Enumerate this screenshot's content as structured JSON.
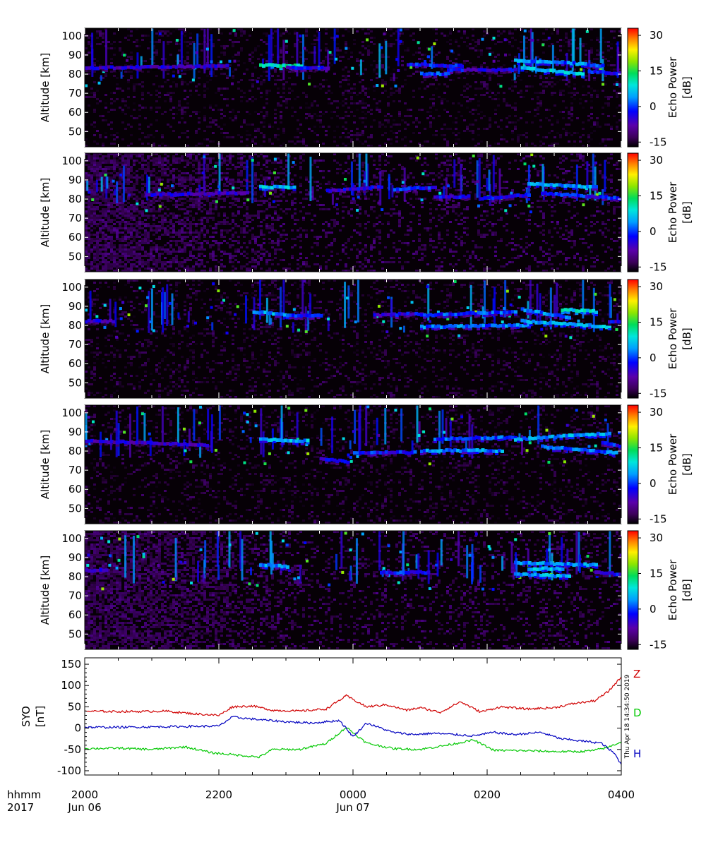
{
  "chart_data": [
    {
      "type": "heatmap",
      "panel": 1,
      "ylabel": "Altitude [km]",
      "yticks": [
        50,
        60,
        70,
        80,
        90,
        100
      ],
      "ylim": [
        42,
        104
      ],
      "xlim": [
        0,
        8
      ],
      "colorbar": {
        "label": "Echo Power\n[dB]",
        "ticks": [
          -15,
          0,
          15,
          30
        ],
        "range": [
          -17,
          33
        ]
      },
      "background_level_db": -14,
      "echo_layers": [
        {
          "t0": 0.0,
          "t1": 2.1,
          "alt0": 83,
          "alt1": 84,
          "db": -6
        },
        {
          "t0": 2.6,
          "t1": 3.2,
          "alt0": 84.5,
          "alt1": 84,
          "db": 10
        },
        {
          "t0": 3.0,
          "t1": 3.6,
          "alt0": 83,
          "alt1": 83,
          "db": -4
        },
        {
          "t0": 4.8,
          "t1": 5.6,
          "alt0": 85,
          "alt1": 84,
          "db": -2
        },
        {
          "t0": 5.0,
          "t1": 5.4,
          "alt0": 80,
          "alt1": 80,
          "db": 0
        },
        {
          "t0": 5.4,
          "t1": 6.4,
          "alt0": 82,
          "alt1": 82,
          "db": -4
        },
        {
          "t0": 6.4,
          "t1": 7.1,
          "alt0": 87,
          "alt1": 86,
          "db": 3
        },
        {
          "t0": 6.5,
          "t1": 7.4,
          "alt0": 83,
          "alt1": 80,
          "db": 6
        },
        {
          "t0": 7.1,
          "t1": 7.7,
          "alt0": 86,
          "alt1": 84,
          "db": 2
        },
        {
          "t0": 7.5,
          "t1": 8.0,
          "alt0": 81,
          "alt1": 80,
          "db": -2
        }
      ]
    },
    {
      "type": "heatmap",
      "panel": 2,
      "ylabel": "Altitude [km]",
      "yticks": [
        50,
        60,
        70,
        80,
        90,
        100
      ],
      "ylim": [
        42,
        104
      ],
      "xlim": [
        0,
        8
      ],
      "colorbar": {
        "label": "Echo Power\n[dB]",
        "ticks": [
          -15,
          0,
          15,
          30
        ],
        "range": [
          -17,
          33
        ]
      },
      "background_level_db": -12,
      "echo_layers": [
        {
          "t0": 0.9,
          "t1": 2.4,
          "alt0": 82,
          "alt1": 83,
          "db": -6
        },
        {
          "t0": 2.6,
          "t1": 3.1,
          "alt0": 86,
          "alt1": 86,
          "db": 6
        },
        {
          "t0": 3.6,
          "t1": 4.4,
          "alt0": 84,
          "alt1": 86,
          "db": -4
        },
        {
          "t0": 4.6,
          "t1": 5.2,
          "alt0": 85,
          "alt1": 86,
          "db": -2
        },
        {
          "t0": 5.2,
          "t1": 5.7,
          "alt0": 81,
          "alt1": 81,
          "db": -4
        },
        {
          "t0": 5.9,
          "t1": 6.6,
          "alt0": 80,
          "alt1": 82,
          "db": -3
        },
        {
          "t0": 6.6,
          "t1": 7.6,
          "alt0": 88,
          "alt1": 86,
          "db": 4
        },
        {
          "t0": 6.8,
          "t1": 8.0,
          "alt0": 83,
          "alt1": 80,
          "db": -2
        }
      ]
    },
    {
      "type": "heatmap",
      "panel": 3,
      "ylabel": "Altitude [km]",
      "yticks": [
        50,
        60,
        70,
        80,
        90,
        100
      ],
      "ylim": [
        42,
        104
      ],
      "xlim": [
        0,
        8
      ],
      "colorbar": {
        "label": "Echo Power\n[dB]",
        "ticks": [
          -15,
          0,
          15,
          30
        ],
        "range": [
          -17,
          33
        ]
      },
      "background_level_db": -14,
      "echo_layers": [
        {
          "t0": 0.0,
          "t1": 0.4,
          "alt0": 82,
          "alt1": 82,
          "db": -6
        },
        {
          "t0": 2.5,
          "t1": 3.0,
          "alt0": 87,
          "alt1": 85,
          "db": 4
        },
        {
          "t0": 3.0,
          "t1": 3.5,
          "alt0": 85,
          "alt1": 85,
          "db": -2
        },
        {
          "t0": 4.3,
          "t1": 5.0,
          "alt0": 85,
          "alt1": 86,
          "db": -4
        },
        {
          "t0": 5.0,
          "t1": 6.4,
          "alt0": 85,
          "alt1": 87,
          "db": 0
        },
        {
          "t0": 5.0,
          "t1": 6.6,
          "alt0": 79,
          "alt1": 80,
          "db": 2
        },
        {
          "t0": 6.5,
          "t1": 7.2,
          "alt0": 88,
          "alt1": 84,
          "db": 3
        },
        {
          "t0": 6.5,
          "t1": 7.8,
          "alt0": 82,
          "alt1": 79,
          "db": 5
        },
        {
          "t0": 7.1,
          "t1": 7.6,
          "alt0": 88,
          "alt1": 87,
          "db": 8
        },
        {
          "t0": 7.8,
          "t1": 8.0,
          "alt0": 82,
          "alt1": 82,
          "db": -4
        }
      ]
    },
    {
      "type": "heatmap",
      "panel": 4,
      "ylabel": "Altitude [km]",
      "yticks": [
        50,
        60,
        70,
        80,
        90,
        100
      ],
      "ylim": [
        42,
        104
      ],
      "xlim": [
        0,
        8
      ],
      "colorbar": {
        "label": "Echo Power\n[dB]",
        "ticks": [
          -15,
          0,
          15,
          30
        ],
        "range": [
          -17,
          33
        ]
      },
      "background_level_db": -14,
      "echo_layers": [
        {
          "t0": 0.0,
          "t1": 1.8,
          "alt0": 85,
          "alt1": 83,
          "db": -6
        },
        {
          "t0": 2.6,
          "t1": 3.3,
          "alt0": 86,
          "alt1": 85,
          "db": 5
        },
        {
          "t0": 3.5,
          "t1": 3.9,
          "alt0": 76,
          "alt1": 74,
          "db": -4
        },
        {
          "t0": 4.0,
          "t1": 4.9,
          "alt0": 79,
          "alt1": 79,
          "db": -2
        },
        {
          "t0": 5.0,
          "t1": 6.2,
          "alt0": 80,
          "alt1": 80,
          "db": 3
        },
        {
          "t0": 5.2,
          "t1": 6.4,
          "alt0": 86,
          "alt1": 87,
          "db": 0
        },
        {
          "t0": 6.4,
          "t1": 7.8,
          "alt0": 86,
          "alt1": 89,
          "db": 4
        },
        {
          "t0": 6.8,
          "t1": 7.9,
          "alt0": 82,
          "alt1": 79,
          "db": 2
        },
        {
          "t0": 7.7,
          "t1": 8.0,
          "alt0": 84,
          "alt1": 82,
          "db": -2
        }
      ]
    },
    {
      "type": "heatmap",
      "panel": 5,
      "ylabel": "Altitude [km]",
      "yticks": [
        50,
        60,
        70,
        80,
        90,
        100
      ],
      "ylim": [
        42,
        104
      ],
      "xlim": [
        0,
        8
      ],
      "colorbar": {
        "label": "Echo Power\n[dB]",
        "ticks": [
          -15,
          0,
          15,
          30
        ],
        "range": [
          -17,
          33
        ]
      },
      "background_level_db": -12,
      "echo_layers": [
        {
          "t0": 0.0,
          "t1": 0.3,
          "alt0": 83,
          "alt1": 83,
          "db": -6
        },
        {
          "t0": 2.6,
          "t1": 3.0,
          "alt0": 86,
          "alt1": 85,
          "db": 3
        },
        {
          "t0": 4.4,
          "t1": 5.1,
          "alt0": 82,
          "alt1": 82,
          "db": -2
        },
        {
          "t0": 6.4,
          "t1": 7.6,
          "alt0": 87,
          "alt1": 86,
          "db": 3
        },
        {
          "t0": 6.4,
          "t1": 7.2,
          "alt0": 81,
          "alt1": 80,
          "db": 4
        },
        {
          "t0": 6.6,
          "t1": 7.1,
          "alt0": 84,
          "alt1": 84,
          "db": 6
        },
        {
          "t0": 7.6,
          "t1": 8.0,
          "alt0": 82,
          "alt1": 81,
          "db": -4
        }
      ]
    },
    {
      "type": "line",
      "panel": 6,
      "ylabel": "SYO\n[nT]",
      "yticks": [
        -100,
        -50,
        0,
        50,
        100,
        150
      ],
      "ylim": [
        -110,
        165
      ],
      "xlim": [
        0,
        8
      ],
      "stamp": "Thu Apr 18 14:34:50 2019",
      "series": [
        {
          "name": "Z",
          "color": "#d00000",
          "hours": [
            0,
            0.4,
            0.8,
            1.2,
            1.6,
            2.0,
            2.2,
            2.5,
            2.8,
            3.2,
            3.6,
            3.9,
            4.2,
            4.5,
            4.8,
            5.0,
            5.3,
            5.6,
            5.9,
            6.2,
            6.6,
            7.0,
            7.3,
            7.6,
            7.8,
            8.0
          ],
          "values": [
            40,
            39,
            39,
            40,
            34,
            30,
            50,
            52,
            42,
            40,
            45,
            76,
            50,
            55,
            42,
            48,
            37,
            62,
            38,
            50,
            45,
            48,
            58,
            64,
            85,
            120
          ]
        },
        {
          "name": "D",
          "color": "#00c800",
          "hours": [
            0,
            0.5,
            1.0,
            1.5,
            1.9,
            2.2,
            2.6,
            2.8,
            3.2,
            3.6,
            3.9,
            4.2,
            4.6,
            5.0,
            5.4,
            5.8,
            6.1,
            6.6,
            7.0,
            7.4,
            7.6,
            7.8,
            8.0
          ],
          "values": [
            -48,
            -47,
            -50,
            -44,
            -58,
            -62,
            -68,
            -50,
            -50,
            -36,
            2,
            -35,
            -48,
            -50,
            -40,
            -28,
            -52,
            -53,
            -55,
            -55,
            -52,
            -45,
            -32
          ]
        },
        {
          "name": "H",
          "color": "#0000c0",
          "hours": [
            0,
            0.5,
            1.0,
            1.5,
            2.0,
            2.2,
            2.6,
            3.0,
            3.4,
            3.8,
            4.0,
            4.2,
            4.6,
            4.9,
            5.2,
            5.5,
            5.8,
            6.1,
            6.4,
            6.8,
            7.1,
            7.4,
            7.7,
            7.9,
            8.0
          ],
          "values": [
            2,
            2,
            3,
            4,
            5,
            26,
            20,
            15,
            12,
            18,
            -20,
            12,
            -10,
            -15,
            -12,
            -15,
            -18,
            -10,
            -15,
            -10,
            -25,
            -30,
            -35,
            -60,
            -85
          ]
        }
      ]
    }
  ],
  "time_axis": {
    "label_top": "hhmm",
    "label_bottom": "2017",
    "ticks": [
      {
        "hour": 0,
        "time": "2000",
        "date": "Jun 06"
      },
      {
        "hour": 2,
        "time": "2200",
        "date": ""
      },
      {
        "hour": 4,
        "time": "0000",
        "date": "Jun 07"
      },
      {
        "hour": 6,
        "time": "0200",
        "date": ""
      },
      {
        "hour": 8,
        "time": "0400",
        "date": ""
      }
    ]
  }
}
